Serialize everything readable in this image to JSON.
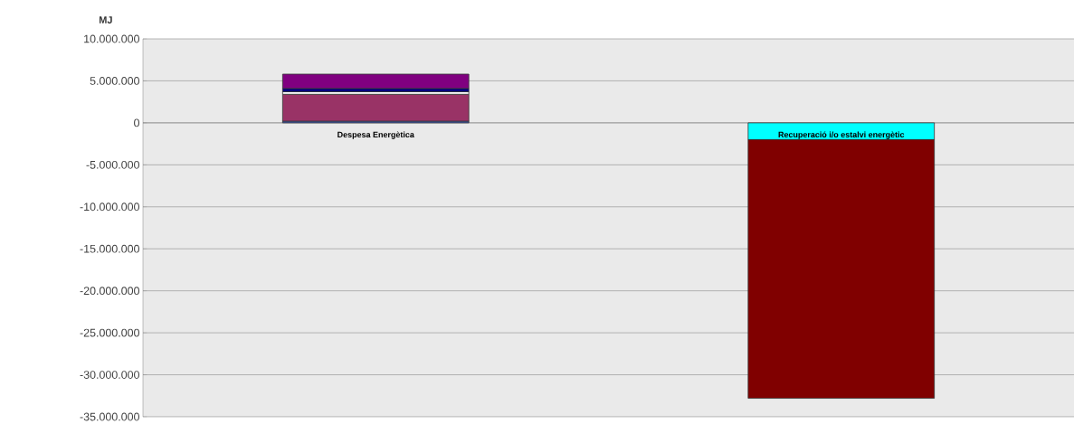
{
  "chart_data": {
    "type": "bar",
    "stacked": true,
    "ylabel": "MJ",
    "categories": [
      "Despesa Energètica",
      "Recuperació i/o estalvi energètic"
    ],
    "series": [
      {
        "color": "#4060c0",
        "values": [
          200000,
          null
        ]
      },
      {
        "color": "#993366",
        "values": [
          3200000,
          null
        ]
      },
      {
        "color": "#ffffff",
        "values": [
          300000,
          null
        ]
      },
      {
        "color": "#000080",
        "values": [
          400000,
          null
        ]
      },
      {
        "color": "#800080",
        "values": [
          1700000,
          null
        ]
      },
      {
        "color": "#00ffff",
        "values": [
          null,
          -2000000
        ]
      },
      {
        "color": "#800000",
        "values": [
          null,
          -30800000
        ]
      }
    ],
    "ylim": [
      -35000000,
      10000000
    ],
    "yticks": [
      {
        "value": 10000000,
        "label": "10.000.000"
      },
      {
        "value": 5000000,
        "label": "5.000.000"
      },
      0,
      {
        "value": -5000000,
        "label": "-5.000.000"
      },
      {
        "value": -10000000,
        "label": "-10.000.000"
      },
      {
        "value": -15000000,
        "label": "-15.000.000"
      },
      {
        "value": -20000000,
        "label": "-20.000.000"
      },
      {
        "value": -25000000,
        "label": "-25.000.000"
      },
      {
        "value": -30000000,
        "label": "-30.000.000"
      },
      {
        "value": -35000000,
        "label": "-35.000.000"
      }
    ],
    "grid": "y"
  }
}
